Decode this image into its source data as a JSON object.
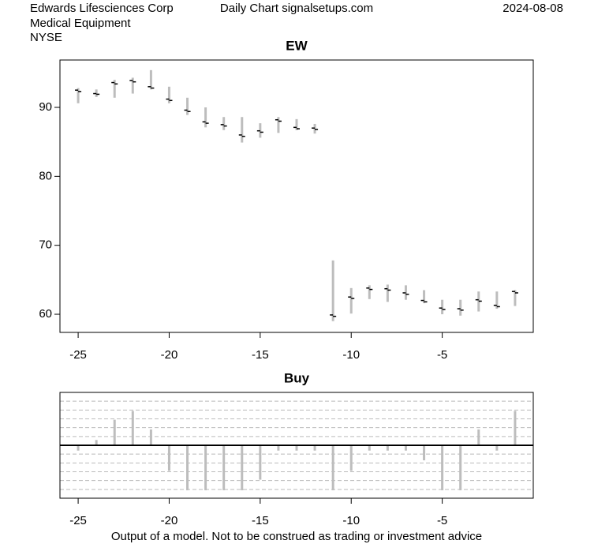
{
  "header": {
    "company": "Edwards Lifesciences Corp",
    "sector": "Medical Equipment",
    "exchange": "NYSE",
    "source": "Daily Chart signalsetups.com",
    "date": "2024-08-08"
  },
  "footer": "Output of a model. Not to be construed as trading or investment advice",
  "chart_data": [
    {
      "type": "ohlc",
      "title": "EW",
      "x": [
        -25,
        -24,
        -23,
        -22,
        -21,
        -20,
        -19,
        -18,
        -17,
        -16,
        -15,
        -14,
        -13,
        -12,
        -11,
        -10,
        -9,
        -8,
        -7,
        -6,
        -5,
        -4,
        -3,
        -2,
        -1
      ],
      "open": [
        92.5,
        92.0,
        93.6,
        93.9,
        93.0,
        91.2,
        89.6,
        87.9,
        87.5,
        86.0,
        86.6,
        88.2,
        87.1,
        87.0,
        59.9,
        62.5,
        63.8,
        63.7,
        63.1,
        62.0,
        60.9,
        60.8,
        62.1,
        61.3,
        63.3
      ],
      "high": [
        92.8,
        92.6,
        94.0,
        94.3,
        95.4,
        93.0,
        91.4,
        90.0,
        88.6,
        88.6,
        87.7,
        88.6,
        88.3,
        87.6,
        67.8,
        63.8,
        64.2,
        64.3,
        64.2,
        63.5,
        62.1,
        62.1,
        63.3,
        63.3,
        63.5
      ],
      "low": [
        90.6,
        91.5,
        91.4,
        92.0,
        92.6,
        90.6,
        88.9,
        87.1,
        86.7,
        84.9,
        85.6,
        86.3,
        86.7,
        86.2,
        59.0,
        60.1,
        62.2,
        61.8,
        62.1,
        61.6,
        60.0,
        59.8,
        60.4,
        60.8,
        61.2
      ],
      "close": [
        92.3,
        91.9,
        93.4,
        93.7,
        92.8,
        91.0,
        89.4,
        87.7,
        87.3,
        85.8,
        86.4,
        88.0,
        86.9,
        86.8,
        59.7,
        62.3,
        63.6,
        63.5,
        62.9,
        61.8,
        60.7,
        60.6,
        61.9,
        61.1,
        63.1
      ],
      "color": "#bdbdbd",
      "tick_color": "#000000",
      "xlim": [
        -26,
        0
      ],
      "xticks": [
        -25,
        -20,
        -15,
        -10,
        -5
      ],
      "ylim": [
        57.37,
        96.87
      ],
      "yticks": [
        60,
        70,
        80,
        90
      ]
    },
    {
      "type": "bar",
      "title": "Buy",
      "x": [
        -25,
        -24,
        -23,
        -22,
        -21,
        -20,
        -19,
        -18,
        -17,
        -16,
        -15,
        -14,
        -13,
        -12,
        -11,
        -10,
        -9,
        -8,
        -7,
        -6,
        -5,
        -4,
        -3,
        -2,
        -1
      ],
      "values": [
        -0.6,
        0.6,
        2.9,
        3.9,
        1.8,
        -2.9,
        -5.1,
        -5.1,
        -5.1,
        -5.1,
        -3.9,
        -0.6,
        -0.6,
        -0.6,
        -5.1,
        -2.9,
        -0.6,
        -0.6,
        -0.6,
        -1.7,
        -5.1,
        -5.1,
        1.8,
        -0.6,
        3.9
      ],
      "color": "#bdbdbd",
      "xlim": [
        -26,
        0
      ],
      "xticks": [
        -25,
        -20,
        -15,
        -10,
        -5
      ],
      "ylim": [
        -6,
        6
      ],
      "ygrid": [
        -5,
        -4,
        -3,
        -2,
        -1,
        1,
        2,
        3,
        4,
        5
      ],
      "grid": true
    }
  ]
}
